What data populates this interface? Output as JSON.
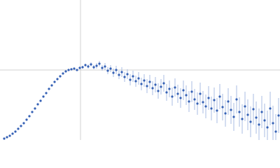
{
  "chart_data": {
    "type": "scatter",
    "xlim": [
      0,
      400
    ],
    "ylim": [
      0,
      200
    ],
    "xticks": [
      115
    ],
    "yticks": [
      100
    ],
    "grid": true,
    "series": [
      {
        "color": "#3561b5",
        "error_color": "#a9bde3",
        "x": [
          6,
          10,
          14,
          18,
          22,
          26,
          30,
          34,
          38,
          42,
          46,
          50,
          54,
          58,
          62,
          66,
          70,
          74,
          78,
          82,
          86,
          90,
          94,
          98,
          102,
          106,
          110,
          114,
          118,
          122,
          126,
          130,
          134,
          138,
          142,
          146,
          150,
          154,
          158,
          162,
          166,
          170,
          174,
          178,
          182,
          186,
          190,
          194,
          198,
          202,
          206,
          210,
          214,
          218,
          222,
          226,
          230,
          234,
          238,
          242,
          246,
          250,
          254,
          258,
          262,
          266,
          270,
          274,
          278,
          282,
          286,
          290,
          294,
          298,
          302,
          306,
          310,
          314,
          318,
          322,
          326,
          330,
          334,
          338,
          342,
          346,
          350,
          354,
          358,
          362,
          366,
          370,
          374,
          378,
          382,
          386,
          390,
          394,
          398
        ],
        "values": [
          2,
          4,
          6,
          9,
          12,
          16,
          20,
          24,
          29,
          34,
          40,
          45,
          51,
          56,
          62,
          67,
          73,
          78,
          83,
          87,
          91,
          95,
          98,
          100,
          101,
          102,
          100,
          103,
          104,
          107,
          105,
          108,
          104,
          106,
          109,
          103,
          105,
          99,
          102,
          96,
          100,
          93,
          97,
          90,
          94,
          86,
          91,
          84,
          88,
          80,
          85,
          77,
          83,
          74,
          79,
          70,
          76,
          81,
          68,
          73,
          62,
          75,
          66,
          60,
          71,
          64,
          55,
          69,
          58,
          52,
          66,
          54,
          48,
          60,
          45,
          57,
          42,
          62,
          47,
          38,
          55,
          43,
          33,
          58,
          40,
          30,
          48,
          36,
          26,
          44,
          32,
          22,
          40,
          28,
          18,
          45,
          24,
          12,
          35
        ],
        "errors": [
          1,
          1,
          1,
          1,
          1,
          1,
          1,
          1,
          1,
          1,
          1,
          1,
          1,
          1,
          1,
          1,
          1,
          1,
          1,
          1,
          1,
          1,
          1,
          1,
          1,
          1,
          1,
          2,
          2,
          2,
          3,
          3,
          3,
          4,
          4,
          4,
          5,
          5,
          5,
          6,
          6,
          6,
          7,
          7,
          7,
          8,
          8,
          8,
          9,
          9,
          9,
          10,
          10,
          10,
          11,
          11,
          11,
          12,
          12,
          12,
          13,
          13,
          13,
          14,
          14,
          14,
          15,
          15,
          15,
          16,
          16,
          16,
          17,
          17,
          17,
          18,
          18,
          18,
          19,
          19,
          19,
          20,
          20,
          20,
          21,
          21,
          21,
          22,
          22,
          22,
          23,
          23,
          23,
          24,
          24,
          24,
          25,
          25,
          25
        ]
      }
    ]
  }
}
